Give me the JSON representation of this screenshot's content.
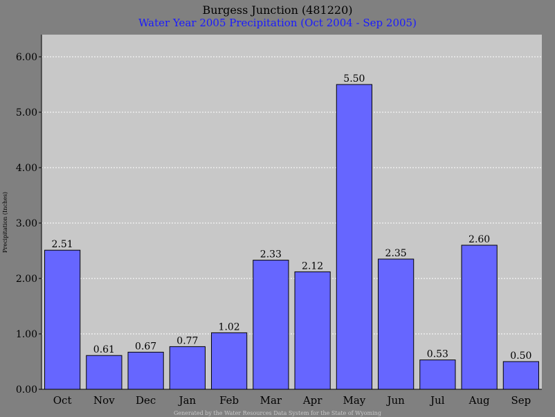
{
  "chart_data": {
    "type": "bar",
    "title": "Burgess Junction (481220)",
    "subtitle": "Water Year 2005 Precipitation (Oct 2004 - Sep 2005)",
    "xlabel": "",
    "ylabel": "Precipitation (Inches)",
    "categories": [
      "Oct",
      "Nov",
      "Dec",
      "Jan",
      "Feb",
      "Mar",
      "Apr",
      "May",
      "Jun",
      "Jul",
      "Aug",
      "Sep"
    ],
    "values": [
      2.51,
      0.61,
      0.67,
      0.77,
      1.02,
      2.33,
      2.12,
      5.5,
      2.35,
      0.53,
      2.6,
      0.5
    ],
    "value_labels": [
      "2.51",
      "0.61",
      "0.67",
      "0.77",
      "1.02",
      "2.33",
      "2.12",
      "5.50",
      "2.35",
      "0.53",
      "2.60",
      "0.50"
    ],
    "ylim": [
      0,
      6.4
    ],
    "yticks": [
      0,
      1,
      2,
      3,
      4,
      5,
      6
    ],
    "ytick_labels": [
      "0.00",
      "1.00",
      "2.00",
      "3.00",
      "4.00",
      "5.00",
      "6.00"
    ],
    "grid": true,
    "legend": "none",
    "colors": {
      "bar": "#6666ff",
      "plot_background": "#c8c8c8",
      "page_background": "#808080",
      "grid": "#ffffff",
      "subtitle": "#1a1aff",
      "footer_text": "#c8c8c8"
    }
  },
  "footer": "Generated by the Water Resources Data System for the State of Wyoming"
}
